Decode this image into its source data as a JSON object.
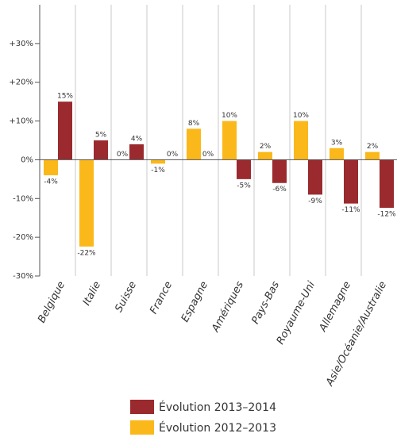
{
  "chart_data": {
    "type": "bar",
    "categories": [
      "Belgique",
      "Italie",
      "Suisse",
      "France",
      "Espagne",
      "Amériques",
      "Pays-Bas",
      "Royaume-Uni",
      "Allemagne",
      "Asie/Océanie/Australie"
    ],
    "series": [
      {
        "name": "Évolution 2013–2014",
        "color": "#9b2a2e",
        "values": [
          15,
          5,
          4,
          0,
          0,
          -5,
          -6,
          -9,
          -11.3,
          -12.4
        ],
        "value_labels": [
          "15%",
          "5%",
          "4%",
          "0%",
          "0%",
          "-5%",
          "-6%",
          "-9%",
          "-11%",
          "-12%"
        ]
      },
      {
        "name": "Évolution 2012–2013",
        "color": "#fbb81a",
        "values": [
          -4,
          -22.4,
          0,
          -1,
          8,
          10,
          2,
          10,
          3,
          2
        ],
        "value_labels": [
          "-4%",
          "-22%",
          "0%",
          "-1%",
          "8%",
          "10%",
          "2%",
          "10%",
          "3%",
          "2%"
        ]
      }
    ],
    "ylim": [
      -30,
      40
    ],
    "yticks": [
      {
        "value": -30,
        "label": "-30%"
      },
      {
        "value": -20,
        "label": "-20%"
      },
      {
        "value": -10,
        "label": "-10%"
      },
      {
        "value": 0,
        "label": "0%"
      },
      {
        "value": 10,
        "label": "+10%"
      },
      {
        "value": 20,
        "label": "+20%"
      },
      {
        "value": 30,
        "label": "+30%"
      }
    ]
  }
}
